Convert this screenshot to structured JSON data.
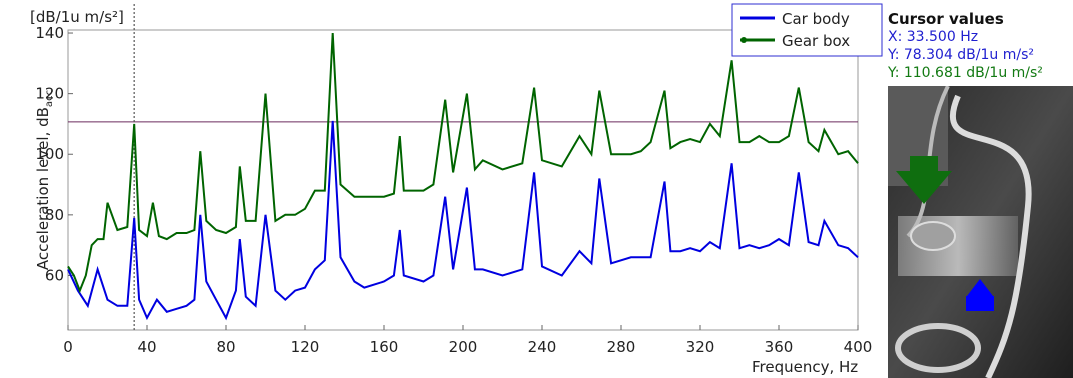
{
  "chart_data": {
    "type": "line",
    "ylabel": "Acceleration level,  dB",
    "ylabel_sub": "acc",
    "yunit": "[dB/1u m/s²]",
    "xlabel": "Frequency,  Hz",
    "xlim": [
      0,
      400
    ],
    "ylim": [
      42,
      141
    ],
    "xticks": [
      0,
      40,
      80,
      120,
      160,
      200,
      240,
      280,
      320,
      360,
      400
    ],
    "yticks": [
      60,
      80,
      100,
      120,
      140
    ],
    "legend_position": "top-right",
    "cursor": {
      "x": 33.5
    },
    "horizontal_line": {
      "y": 110.7
    },
    "series": [
      {
        "name": "Car body",
        "color": "#0000e0",
        "x": [
          0,
          5,
          10,
          15,
          20,
          25,
          30,
          33.5,
          36,
          40,
          45,
          50,
          55,
          60,
          64,
          67,
          70,
          75,
          80,
          85,
          87,
          90,
          95,
          100,
          105,
          110,
          115,
          120,
          125,
          130,
          134,
          138,
          145,
          150,
          160,
          165,
          168,
          170,
          180,
          185,
          191,
          195,
          202,
          206,
          210,
          220,
          230,
          236,
          240,
          250,
          259,
          265,
          269,
          275,
          285,
          290,
          295,
          302,
          305,
          310,
          315,
          320,
          325,
          330,
          336,
          340,
          345,
          350,
          355,
          360,
          365,
          370,
          375,
          380,
          383,
          390,
          395,
          400
        ],
        "y": [
          62,
          55,
          50,
          62,
          52,
          50,
          50,
          79,
          52,
          46,
          52,
          48,
          49,
          50,
          52,
          80,
          58,
          52,
          46,
          55,
          72,
          53,
          50,
          80,
          55,
          52,
          55,
          56,
          62,
          65,
          111,
          66,
          58,
          56,
          58,
          60,
          75,
          60,
          58,
          60,
          86,
          62,
          89,
          62,
          62,
          60,
          62,
          94,
          63,
          60,
          68,
          64,
          92,
          64,
          66,
          66,
          66,
          91,
          68,
          68,
          69,
          68,
          71,
          69,
          97,
          69,
          70,
          69,
          70,
          72,
          70,
          94,
          71,
          70,
          78,
          70,
          69,
          66
        ]
      },
      {
        "name": "Gear box",
        "color": "#006400",
        "x": [
          0,
          3,
          6,
          9,
          12,
          15,
          18,
          20,
          25,
          30,
          33.5,
          36,
          40,
          43,
          46,
          50,
          55,
          60,
          64,
          67,
          70,
          75,
          80,
          85,
          87,
          90,
          95,
          100,
          105,
          110,
          115,
          120,
          125,
          130,
          134,
          138,
          145,
          150,
          160,
          165,
          168,
          170,
          180,
          185,
          191,
          195,
          202,
          206,
          210,
          220,
          230,
          236,
          240,
          250,
          259,
          265,
          269,
          275,
          285,
          290,
          295,
          302,
          305,
          310,
          315,
          320,
          325,
          330,
          336,
          340,
          345,
          350,
          355,
          360,
          365,
          370,
          375,
          380,
          383,
          390,
          395,
          400
        ],
        "y": [
          63,
          60,
          55,
          60,
          70,
          72,
          72,
          84,
          75,
          76,
          110,
          75,
          73,
          84,
          73,
          72,
          74,
          74,
          75,
          101,
          78,
          75,
          74,
          76,
          96,
          78,
          78,
          120,
          78,
          80,
          80,
          82,
          88,
          88,
          140,
          90,
          86,
          86,
          86,
          87,
          106,
          88,
          88,
          90,
          118,
          94,
          120,
          95,
          98,
          95,
          97,
          122,
          98,
          96,
          106,
          100,
          121,
          100,
          100,
          101,
          104,
          121,
          102,
          104,
          105,
          104,
          110,
          106,
          131,
          104,
          104,
          106,
          104,
          104,
          106,
          122,
          104,
          101,
          108,
          100,
          101,
          97
        ]
      }
    ]
  },
  "cursor_panel": {
    "title": "Cursor values",
    "x_line": "X: 33.500 Hz",
    "y1_line": "Y: 78.304 dB/1u m/s²",
    "y2_line": "Y: 110.681 dB/1u m/s²",
    "x_color": "#1f1fcf",
    "y1_color": "#1f1fcf",
    "y2_color": "#137a13"
  },
  "photo": {
    "arrow_down_color": "#0f6e0f",
    "arrow_up_color": "#0000ff"
  }
}
